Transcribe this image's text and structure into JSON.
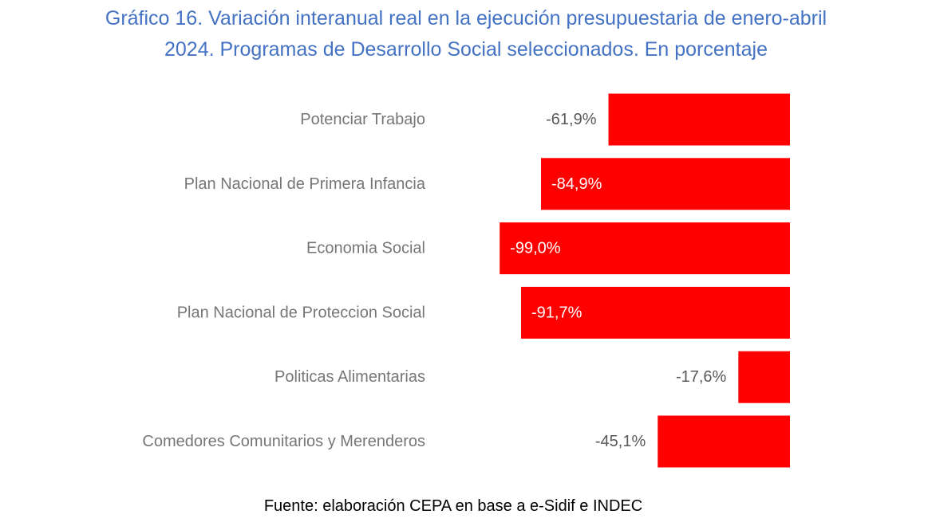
{
  "chart_data": {
    "type": "bar",
    "orientation": "horizontal",
    "title_line1": "Gráfico 16. Variación interanual real en la ejecución presupuestaria de enero-abril",
    "title_line2": "2024. Programas de Desarrollo Social seleccionados. En porcentaje",
    "categories": [
      "Potenciar Trabajo",
      "Plan Nacional de Primera Infancia",
      "Economia Social",
      "Plan Nacional de Proteccion Social",
      "Politicas Alimentarias",
      "Comedores Comunitarios y Merenderos"
    ],
    "values": [
      -61.9,
      -84.9,
      -99.0,
      -91.7,
      -17.6,
      -45.1
    ],
    "data_labels": [
      "-61,9%",
      "-84,9%",
      "-99,0%",
      "-91,7%",
      "-17,6%",
      "-45,1%"
    ],
    "bar_color": "#FF0000",
    "xlim": [
      -100,
      0
    ],
    "grid": false,
    "legend": "none"
  },
  "source": "Fuente: elaboración CEPA en base a e-Sidif e INDEC",
  "colors": {
    "title": "#4472C4",
    "category_text": "#767676",
    "label_outside": "#595959",
    "label_inside": "#FFFFFF"
  }
}
